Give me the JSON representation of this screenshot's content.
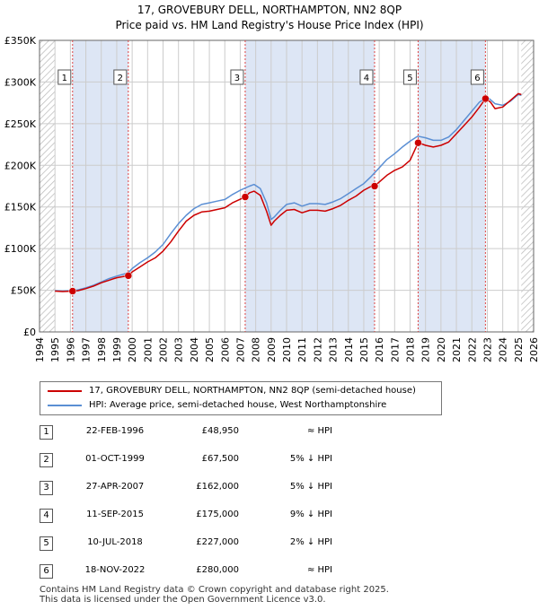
{
  "title": "17, GROVEBURY DELL, NORTHAMPTON, NN2 8QP",
  "subtitle": "Price paid vs. HM Land Registry's House Price Index (HPI)",
  "colors": {
    "property": "#cc0000",
    "hpi": "#5b8fd4",
    "shade": "#dde6f5",
    "grid": "#cccccc"
  },
  "chart_data": {
    "type": "line",
    "title": "17, GROVEBURY DELL, NORTHAMPTON, NN2 8QP",
    "subtitle": "Price paid vs. HM Land Registry's House Price Index (HPI)",
    "xlabel": "",
    "ylabel": "",
    "xlim": [
      1994,
      2026
    ],
    "ylim": [
      0,
      350000
    ],
    "x_ticks": [
      "1994",
      "1995",
      "1996",
      "1997",
      "1998",
      "1999",
      "2000",
      "2001",
      "2002",
      "2003",
      "2004",
      "2005",
      "2006",
      "2007",
      "2008",
      "2009",
      "2010",
      "2011",
      "2012",
      "2013",
      "2014",
      "2015",
      "2016",
      "2017",
      "2018",
      "2019",
      "2020",
      "2021",
      "2022",
      "2023",
      "2024",
      "2025",
      "2026"
    ],
    "y_ticks": [
      {
        "value": 0,
        "label": "£0"
      },
      {
        "value": 50000,
        "label": "£50K"
      },
      {
        "value": 100000,
        "label": "£100K"
      },
      {
        "value": 150000,
        "label": "£150K"
      },
      {
        "value": 200000,
        "label": "£200K"
      },
      {
        "value": 250000,
        "label": "£250K"
      },
      {
        "value": 300000,
        "label": "£300K"
      },
      {
        "value": 350000,
        "label": "£350K"
      }
    ],
    "grid": true,
    "legend_position": "below",
    "series": [
      {
        "name": "17, GROVEBURY DELL, NORTHAMPTON, NN2 8QP (semi-detached house)",
        "x": [
          1995.0,
          1995.5,
          1996.14,
          1996.5,
          1997,
          1997.5,
          1998,
          1998.5,
          1999,
          1999.75,
          2000,
          2000.5,
          2001,
          2001.5,
          2002,
          2002.5,
          2003,
          2003.5,
          2004,
          2004.5,
          2005,
          2005.5,
          2006,
          2006.5,
          2007.32,
          2007.6,
          2007.9,
          2008.3,
          2008.7,
          2009.0,
          2009.2,
          2009.6,
          2010,
          2010.5,
          2011,
          2011.5,
          2012,
          2012.5,
          2013,
          2013.5,
          2014,
          2014.5,
          2015,
          2015.5,
          2015.7,
          2016,
          2016.5,
          2017,
          2017.5,
          2018.0,
          2018.52,
          2018.7,
          2019,
          2019.5,
          2020,
          2020.5,
          2021,
          2021.5,
          2022,
          2022.5,
          2022.88,
          2023.2,
          2023.5,
          2024,
          2024.5,
          2025,
          2025.2
        ],
        "values": [
          49000,
          48500,
          48950,
          49500,
          52000,
          55000,
          59000,
          62000,
          65000,
          67500,
          72000,
          78000,
          84000,
          89000,
          97000,
          108000,
          121000,
          133000,
          140000,
          144000,
          145000,
          147000,
          149000,
          155000,
          162000,
          167000,
          169000,
          164000,
          145000,
          128000,
          133000,
          140000,
          146000,
          147000,
          143000,
          146000,
          146000,
          145000,
          148000,
          152000,
          158000,
          163000,
          170000,
          175000,
          175000,
          180000,
          188000,
          194000,
          198000,
          206000,
          227000,
          226000,
          224000,
          222000,
          224000,
          228000,
          238000,
          248000,
          258000,
          270000,
          280000,
          276000,
          268000,
          270000,
          278000,
          286000,
          285000
        ]
      },
      {
        "name": "HPI: Average price, semi-detached house, West Northamptonshire",
        "x": [
          1995.0,
          1995.5,
          1996.0,
          1996.5,
          1997,
          1997.5,
          1998,
          1998.5,
          1999,
          1999.75,
          2000,
          2000.5,
          2001,
          2001.5,
          2002,
          2002.5,
          2003,
          2003.5,
          2004,
          2004.5,
          2005,
          2005.5,
          2006,
          2006.5,
          2007,
          2007.6,
          2007.9,
          2008.3,
          2008.7,
          2009.0,
          2009.2,
          2009.6,
          2010,
          2010.5,
          2011,
          2011.5,
          2012,
          2012.5,
          2013,
          2013.5,
          2014,
          2014.5,
          2015,
          2015.5,
          2016,
          2016.5,
          2017,
          2017.5,
          2018,
          2018.5,
          2019,
          2019.5,
          2020,
          2020.5,
          2021,
          2021.5,
          2022,
          2022.5,
          2023,
          2023.5,
          2024,
          2024.5,
          2025,
          2025.2
        ],
        "values": [
          49500,
          49000,
          49500,
          50500,
          53000,
          56000,
          60000,
          64000,
          67000,
          71000,
          76000,
          83000,
          89000,
          96000,
          105000,
          118000,
          130000,
          140000,
          148000,
          153000,
          155000,
          157000,
          159000,
          165000,
          170000,
          175000,
          177000,
          172000,
          155000,
          135000,
          138000,
          146000,
          153000,
          155000,
          151000,
          154000,
          154000,
          153000,
          156000,
          160000,
          166000,
          172000,
          178000,
          187000,
          197000,
          207000,
          214000,
          222000,
          229000,
          235000,
          233000,
          230000,
          230000,
          234000,
          243000,
          254000,
          265000,
          276000,
          282000,
          274000,
          272000,
          277000,
          285000,
          284000
        ]
      }
    ],
    "transactions": [
      {
        "label": "1",
        "date": "22-FEB-1996",
        "x": 1996.14,
        "price": 48950,
        "price_text": "£48,950",
        "hpi_text": "≈ HPI"
      },
      {
        "label": "2",
        "date": "01-OCT-1999",
        "x": 1999.75,
        "price": 67500,
        "price_text": "£67,500",
        "hpi_text": "5% ↓ HPI"
      },
      {
        "label": "3",
        "date": "27-APR-2007",
        "x": 2007.32,
        "price": 162000,
        "price_text": "£162,000",
        "hpi_text": "5% ↓ HPI"
      },
      {
        "label": "4",
        "date": "11-SEP-2015",
        "x": 2015.7,
        "price": 175000,
        "price_text": "£175,000",
        "hpi_text": "9% ↓ HPI"
      },
      {
        "label": "5",
        "date": "10-JUL-2018",
        "x": 2018.52,
        "price": 227000,
        "price_text": "£227,000",
        "hpi_text": "2% ↓ HPI"
      },
      {
        "label": "6",
        "date": "18-NOV-2022",
        "x": 2022.88,
        "price": 280000,
        "price_text": "£280,000",
        "hpi_text": "≈ HPI"
      }
    ],
    "shaded_ranges": [
      [
        1996.14,
        1999.75
      ],
      [
        2007.32,
        2015.7
      ],
      [
        2018.52,
        2022.88
      ]
    ],
    "hatched_ranges": [
      [
        1994,
        1995
      ],
      [
        2025.2,
        2026
      ]
    ]
  },
  "legend": {
    "property_label": "17, GROVEBURY DELL, NORTHAMPTON, NN2 8QP (semi-detached house)",
    "hpi_label": "HPI: Average price, semi-detached house, West Northamptonshire"
  },
  "footer": {
    "line1": "Contains HM Land Registry data © Crown copyright and database right 2025.",
    "line2": "This data is licensed under the Open Government Licence v3.0."
  }
}
